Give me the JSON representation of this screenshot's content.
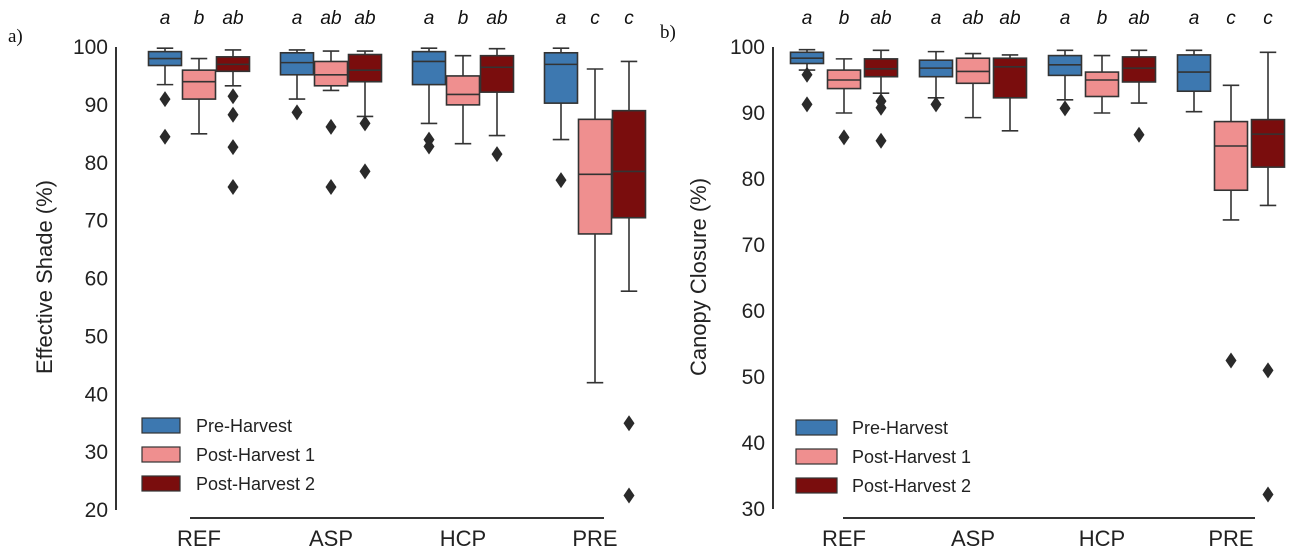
{
  "colors": {
    "pre_harvest": "#3d78b0",
    "post_harvest_1": "#ef8f8f",
    "post_harvest_2": "#7a0d0d",
    "line": "#333333"
  },
  "chart_data": [
    {
      "type": "box",
      "panel_label": "a)",
      "ylabel": "Effective Shade (%)",
      "ylim": [
        20,
        100
      ],
      "yticks": [
        20,
        30,
        40,
        50,
        60,
        70,
        80,
        90,
        100
      ],
      "categories": [
        "REF",
        "ASP",
        "HCP",
        "PRE"
      ],
      "legend_position": "bottom-left",
      "series": [
        {
          "name": "Pre-Harvest",
          "color": "#3d78b0",
          "boxes": [
            {
              "category": "REF",
              "letter": "a",
              "whislo": 93.5,
              "q1": 96.8,
              "med": 98.0,
              "q3": 99.2,
              "whishi": 99.8,
              "fliers": [
                91.0,
                84.5
              ]
            },
            {
              "category": "ASP",
              "letter": "a",
              "whislo": 91.0,
              "q1": 95.2,
              "med": 97.3,
              "q3": 99.0,
              "whishi": 99.5,
              "fliers": [
                88.7
              ]
            },
            {
              "category": "HCP",
              "letter": "a",
              "whislo": 86.8,
              "q1": 93.5,
              "med": 97.5,
              "q3": 99.2,
              "whishi": 99.8,
              "fliers": [
                84.0,
                82.8
              ]
            },
            {
              "category": "PRE",
              "letter": "a",
              "whislo": 84.0,
              "q1": 90.3,
              "med": 97.0,
              "q3": 99.0,
              "whishi": 99.8,
              "fliers": [
                77.0
              ]
            }
          ]
        },
        {
          "name": "Post-Harvest 1",
          "color": "#ef8f8f",
          "boxes": [
            {
              "category": "REF",
              "letter": "b",
              "whislo": 85.0,
              "q1": 91.0,
              "med": 94.0,
              "q3": 96.0,
              "whishi": 98.0,
              "fliers": []
            },
            {
              "category": "ASP",
              "letter": "ab",
              "whislo": 92.5,
              "q1": 93.3,
              "med": 95.2,
              "q3": 97.5,
              "whishi": 99.3,
              "fliers": [
                86.2,
                75.8
              ]
            },
            {
              "category": "HCP",
              "letter": "b",
              "whislo": 83.3,
              "q1": 90.0,
              "med": 91.8,
              "q3": 95.0,
              "whishi": 98.5,
              "fliers": []
            },
            {
              "category": "PRE",
              "letter": "c",
              "whislo": 42.0,
              "q1": 67.7,
              "med": 78.0,
              "q3": 87.5,
              "whishi": 96.2,
              "fliers": []
            }
          ]
        },
        {
          "name": "Post-Harvest 2",
          "color": "#7a0d0d",
          "boxes": [
            {
              "category": "REF",
              "letter": "ab",
              "whislo": 93.3,
              "q1": 95.8,
              "med": 97.0,
              "q3": 98.3,
              "whishi": 99.5,
              "fliers": [
                91.5,
                88.3,
                82.7,
                75.8
              ]
            },
            {
              "category": "ASP",
              "letter": "ab",
              "whislo": 88.0,
              "q1": 94.0,
              "med": 96.0,
              "q3": 98.7,
              "whishi": 99.3,
              "fliers": [
                86.8,
                78.5
              ]
            },
            {
              "category": "HCP",
              "letter": "ab",
              "whislo": 84.7,
              "q1": 92.2,
              "med": 96.5,
              "q3": 98.5,
              "whishi": 99.7,
              "fliers": [
                81.5
              ]
            },
            {
              "category": "PRE",
              "letter": "c",
              "whislo": 57.8,
              "q1": 70.5,
              "med": 78.5,
              "q3": 89.0,
              "whishi": 97.5,
              "fliers": [
                35.0,
                22.5
              ]
            }
          ]
        }
      ]
    },
    {
      "type": "box",
      "panel_label": "b)",
      "ylabel": "Canopy Closure (%)",
      "ylim": [
        30,
        100
      ],
      "yticks": [
        30,
        40,
        50,
        60,
        70,
        80,
        90,
        100
      ],
      "categories": [
        "REF",
        "ASP",
        "HCP",
        "PRE"
      ],
      "legend_position": "bottom-left",
      "series": [
        {
          "name": "Pre-Harvest",
          "color": "#3d78b0",
          "boxes": [
            {
              "category": "REF",
              "letter": "a",
              "whislo": 96.5,
              "q1": 97.5,
              "med": 98.3,
              "q3": 99.2,
              "whishi": 99.6,
              "fliers": [
                95.8,
                91.3
              ]
            },
            {
              "category": "ASP",
              "letter": "a",
              "whislo": 92.3,
              "q1": 95.5,
              "med": 96.8,
              "q3": 98.0,
              "whishi": 99.3,
              "fliers": [
                91.3
              ]
            },
            {
              "category": "HCP",
              "letter": "a",
              "whislo": 92.0,
              "q1": 95.7,
              "med": 97.3,
              "q3": 98.7,
              "whishi": 99.5,
              "fliers": [
                90.7
              ]
            },
            {
              "category": "PRE",
              "letter": "a",
              "whislo": 90.2,
              "q1": 93.3,
              "med": 96.2,
              "q3": 98.8,
              "whishi": 99.5,
              "fliers": []
            }
          ]
        },
        {
          "name": "Post-Harvest 1",
          "color": "#ef8f8f",
          "boxes": [
            {
              "category": "REF",
              "letter": "b",
              "whislo": 90.0,
              "q1": 93.7,
              "med": 95.0,
              "q3": 96.5,
              "whishi": 98.2,
              "fliers": [
                86.3
              ]
            },
            {
              "category": "ASP",
              "letter": "ab",
              "whislo": 89.3,
              "q1": 94.5,
              "med": 96.3,
              "q3": 98.3,
              "whishi": 99.0,
              "fliers": []
            },
            {
              "category": "HCP",
              "letter": "b",
              "whislo": 90.0,
              "q1": 92.5,
              "med": 95.0,
              "q3": 96.2,
              "whishi": 98.7,
              "fliers": []
            },
            {
              "category": "PRE",
              "letter": "c",
              "whislo": 73.8,
              "q1": 78.3,
              "med": 85.0,
              "q3": 88.7,
              "whishi": 94.2,
              "fliers": [
                52.5
              ]
            }
          ]
        },
        {
          "name": "Post-Harvest 2",
          "color": "#7a0d0d",
          "boxes": [
            {
              "category": "REF",
              "letter": "ab",
              "whislo": 93.0,
              "q1": 95.5,
              "med": 96.7,
              "q3": 98.2,
              "whishi": 99.5,
              "fliers": [
                91.8,
                90.8,
                85.8
              ]
            },
            {
              "category": "ASP",
              "letter": "ab",
              "whislo": 87.3,
              "q1": 92.3,
              "med": 97.0,
              "q3": 98.3,
              "whishi": 98.8,
              "fliers": []
            },
            {
              "category": "HCP",
              "letter": "ab",
              "whislo": 91.5,
              "q1": 94.7,
              "med": 96.8,
              "q3": 98.5,
              "whishi": 99.5,
              "fliers": [
                86.7
              ]
            },
            {
              "category": "PRE",
              "letter": "c",
              "whislo": 76.0,
              "q1": 81.8,
              "med": 86.8,
              "q3": 89.0,
              "whishi": 99.2,
              "fliers": [
                51.0,
                32.2
              ]
            }
          ]
        }
      ]
    }
  ]
}
